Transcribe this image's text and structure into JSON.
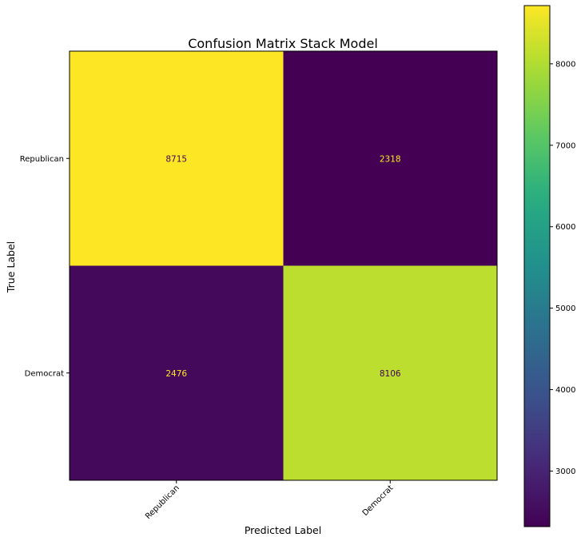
{
  "chart_data": {
    "type": "heatmap",
    "title": "Confusion Matrix Stack Model",
    "xlabel": "Predicted Label",
    "ylabel": "True Label",
    "x_categories": [
      "Republican",
      "Democrat"
    ],
    "y_categories": [
      "Republican",
      "Democrat"
    ],
    "values": [
      [
        8715,
        2318
      ],
      [
        2476,
        8106
      ]
    ],
    "colormap": "viridis",
    "colorbar": {
      "vmin": 2318,
      "vmax": 8715,
      "ticks": [
        3000,
        4000,
        5000,
        6000,
        7000,
        8000
      ]
    },
    "text_colors": {
      "on_dark": "#fde725",
      "on_light": "#440154"
    },
    "grid": false
  }
}
